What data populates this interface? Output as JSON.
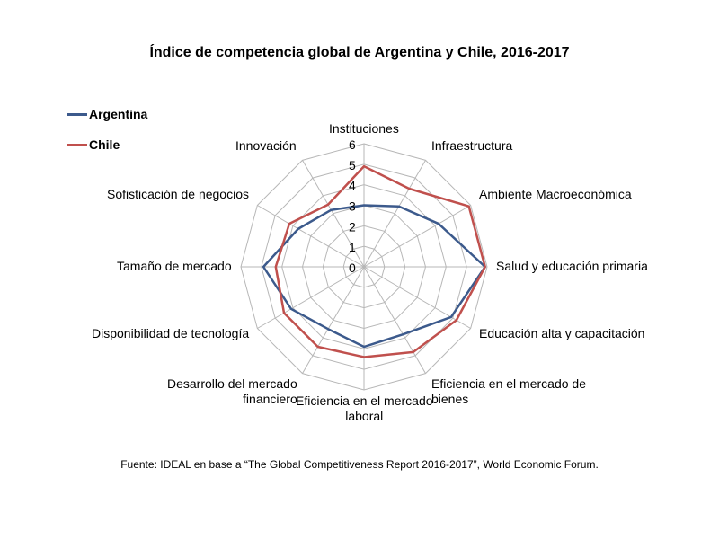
{
  "chart_data": {
    "type": "radar",
    "title": "Índice de competencia global de Argentina y Chile, 2016-2017",
    "axes": [
      "Instituciones",
      "Infraestructura",
      "Ambiente Macroeconómica",
      "Salud y educación primaria",
      "Educación alta y capacitación",
      "Eficiencia en el mercado de bienes",
      "Eficiencia en el mercado laboral",
      "Desarrollo del mercado financiero",
      "Disponibilidad de tecnología",
      "Tamaño de mercado",
      "Sofisticación de negocios",
      "Innovación"
    ],
    "axis_label_lines": [
      [
        "Instituciones"
      ],
      [
        "Infraestructura"
      ],
      [
        "Ambiente Macroeconómica"
      ],
      [
        "Salud y educación primaria"
      ],
      [
        "Educación alta y capacitación"
      ],
      [
        "Eficiencia en el mercado de",
        "bienes"
      ],
      [
        "Eficiencia en el mercado",
        "laboral"
      ],
      [
        "Desarrollo del mercado",
        "financiero"
      ],
      [
        "Disponibilidad de tecnología"
      ],
      [
        "Tamaño de mercado"
      ],
      [
        "Sofisticación de negocios"
      ],
      [
        "Innovación"
      ]
    ],
    "rlim": [
      0,
      6
    ],
    "ticks": [
      "0",
      "1",
      "2",
      "3",
      "4",
      "5",
      "6"
    ],
    "series": [
      {
        "name": "Argentina",
        "color": "#3c5a8c",
        "values": [
          3.0,
          3.4,
          4.2,
          5.9,
          4.9,
          3.8,
          3.9,
          3.5,
          4.1,
          4.9,
          3.7,
          3.2
        ]
      },
      {
        "name": "Chile",
        "color": "#c0504d",
        "values": [
          4.9,
          4.4,
          5.9,
          5.9,
          5.2,
          4.8,
          4.4,
          4.5,
          4.5,
          4.3,
          4.2,
          3.5
        ]
      }
    ],
    "legend": "top-left",
    "grid": true
  },
  "source": "Fuente: IDEAL en base a “The Global Competitiveness Report 2016-2017”, World Economic Forum."
}
